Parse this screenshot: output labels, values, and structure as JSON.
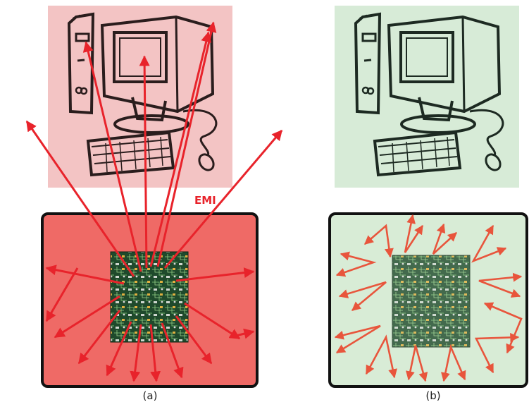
{
  "captions": {
    "left": "(a)",
    "right": "(b)"
  },
  "emi_label": "EMI",
  "colors": {
    "emi_arrow": "#e8232b",
    "contained_arrow": "#e8553c",
    "panel_a_bg": "#f3c4c4",
    "enclosure_a_fill": "#ef6a66",
    "panel_b_bg": "#d7ebd7",
    "enclosure_b_fill": "#d8ecd6",
    "computer_line_a": "#2a1d1d",
    "computer_line_b": "#1d2a22",
    "pcb": "#1f4a2c"
  },
  "icons": {
    "computer": "desktop-computer-icon",
    "mouse": "mouse-icon",
    "board": "circuit-board-icon"
  }
}
